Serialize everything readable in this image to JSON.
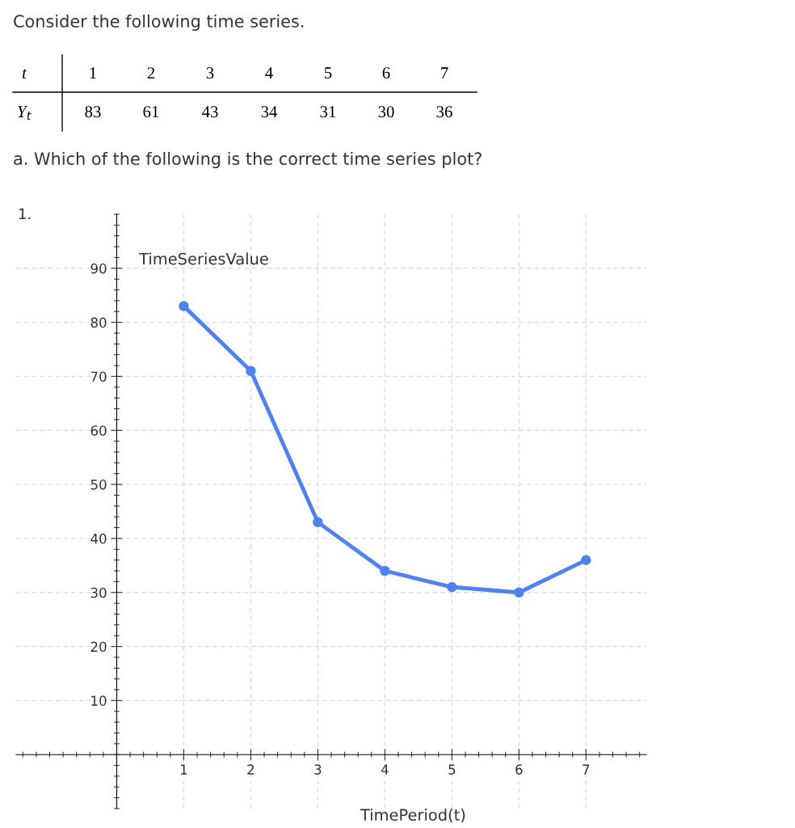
{
  "chart_data": {
    "type": "line",
    "xlabel": "TimePeriod(t)",
    "ylabel": "TimeSeriesValue",
    "x": [
      1,
      2,
      3,
      4,
      5,
      6,
      7
    ],
    "series": [
      {
        "color": "#4f82ee",
        "values": [
          83,
          71,
          43,
          34,
          31,
          30,
          36
        ]
      }
    ],
    "xlim": [
      -1.5,
      7.9
    ],
    "ylim": [
      -10,
      100
    ],
    "xticks": [
      1,
      2,
      3,
      4,
      5,
      6,
      7
    ],
    "yticks": [
      10,
      20,
      30,
      40,
      50,
      60,
      70,
      80,
      90
    ],
    "grid": true,
    "marker": "circle",
    "line_style": "solid",
    "legend": false,
    "annotations": [
      "Consider the following time series.",
      "t",
      "1",
      "2",
      "3",
      "4",
      "5",
      "6",
      "7",
      "Y$_{t}$",
      "83",
      "61",
      "43",
      "34",
      "31",
      "30",
      "36",
      "a. Which of the following is the correct time series plot?",
      "1."
    ]
  }
}
